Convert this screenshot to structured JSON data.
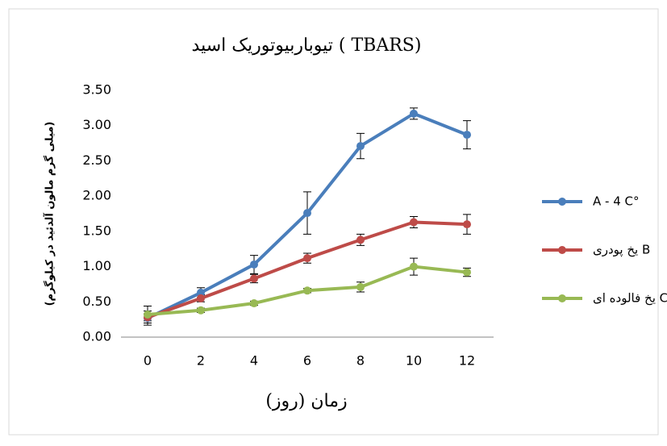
{
  "chart_data": {
    "type": "line",
    "title": "تیوباربیوتوریک اسید  ( TBARS)",
    "x_label": "زمان (روز)",
    "y_label": "(میلی گرم مالون آلدئید در کیلوگرم)",
    "categories": [
      "0",
      "2",
      "4",
      "6",
      "8",
      "10",
      "12"
    ],
    "ylim": [
      0,
      3.5
    ],
    "yticks": [
      {
        "value": 0,
        "label": "0.00"
      },
      {
        "value": 0.5,
        "label": "0.50"
      },
      {
        "value": 1,
        "label": "1.00"
      },
      {
        "value": 1.5,
        "label": "1.50"
      },
      {
        "value": 2,
        "label": "2.00"
      },
      {
        "value": 2.5,
        "label": "2.50"
      },
      {
        "value": 3,
        "label": "3.00"
      },
      {
        "value": 3.5,
        "label": "3.50"
      }
    ],
    "grid": false,
    "legend": "right",
    "series": [
      {
        "name": "A - 4 C°",
        "color": "#4a7ebb",
        "values": [
          0.27,
          0.63,
          1.03,
          1.76,
          2.71,
          3.17,
          2.87
        ],
        "errors": [
          0.1,
          0.07,
          0.13,
          0.3,
          0.18,
          0.08,
          0.2
        ]
      },
      {
        "name": "یخ پودری B",
        "color": "#be4b48",
        "values": [
          0.28,
          0.55,
          0.83,
          1.12,
          1.38,
          1.63,
          1.6
        ],
        "errors": [
          0.05,
          0.05,
          0.06,
          0.07,
          0.08,
          0.08,
          0.14
        ]
      },
      {
        "name": "یخ فالوده ای C",
        "color": "#98b954",
        "values": [
          0.32,
          0.38,
          0.48,
          0.66,
          0.71,
          1.0,
          0.92
        ],
        "errors": [
          0.12,
          0.03,
          0.03,
          0.03,
          0.07,
          0.12,
          0.06
        ]
      }
    ]
  }
}
